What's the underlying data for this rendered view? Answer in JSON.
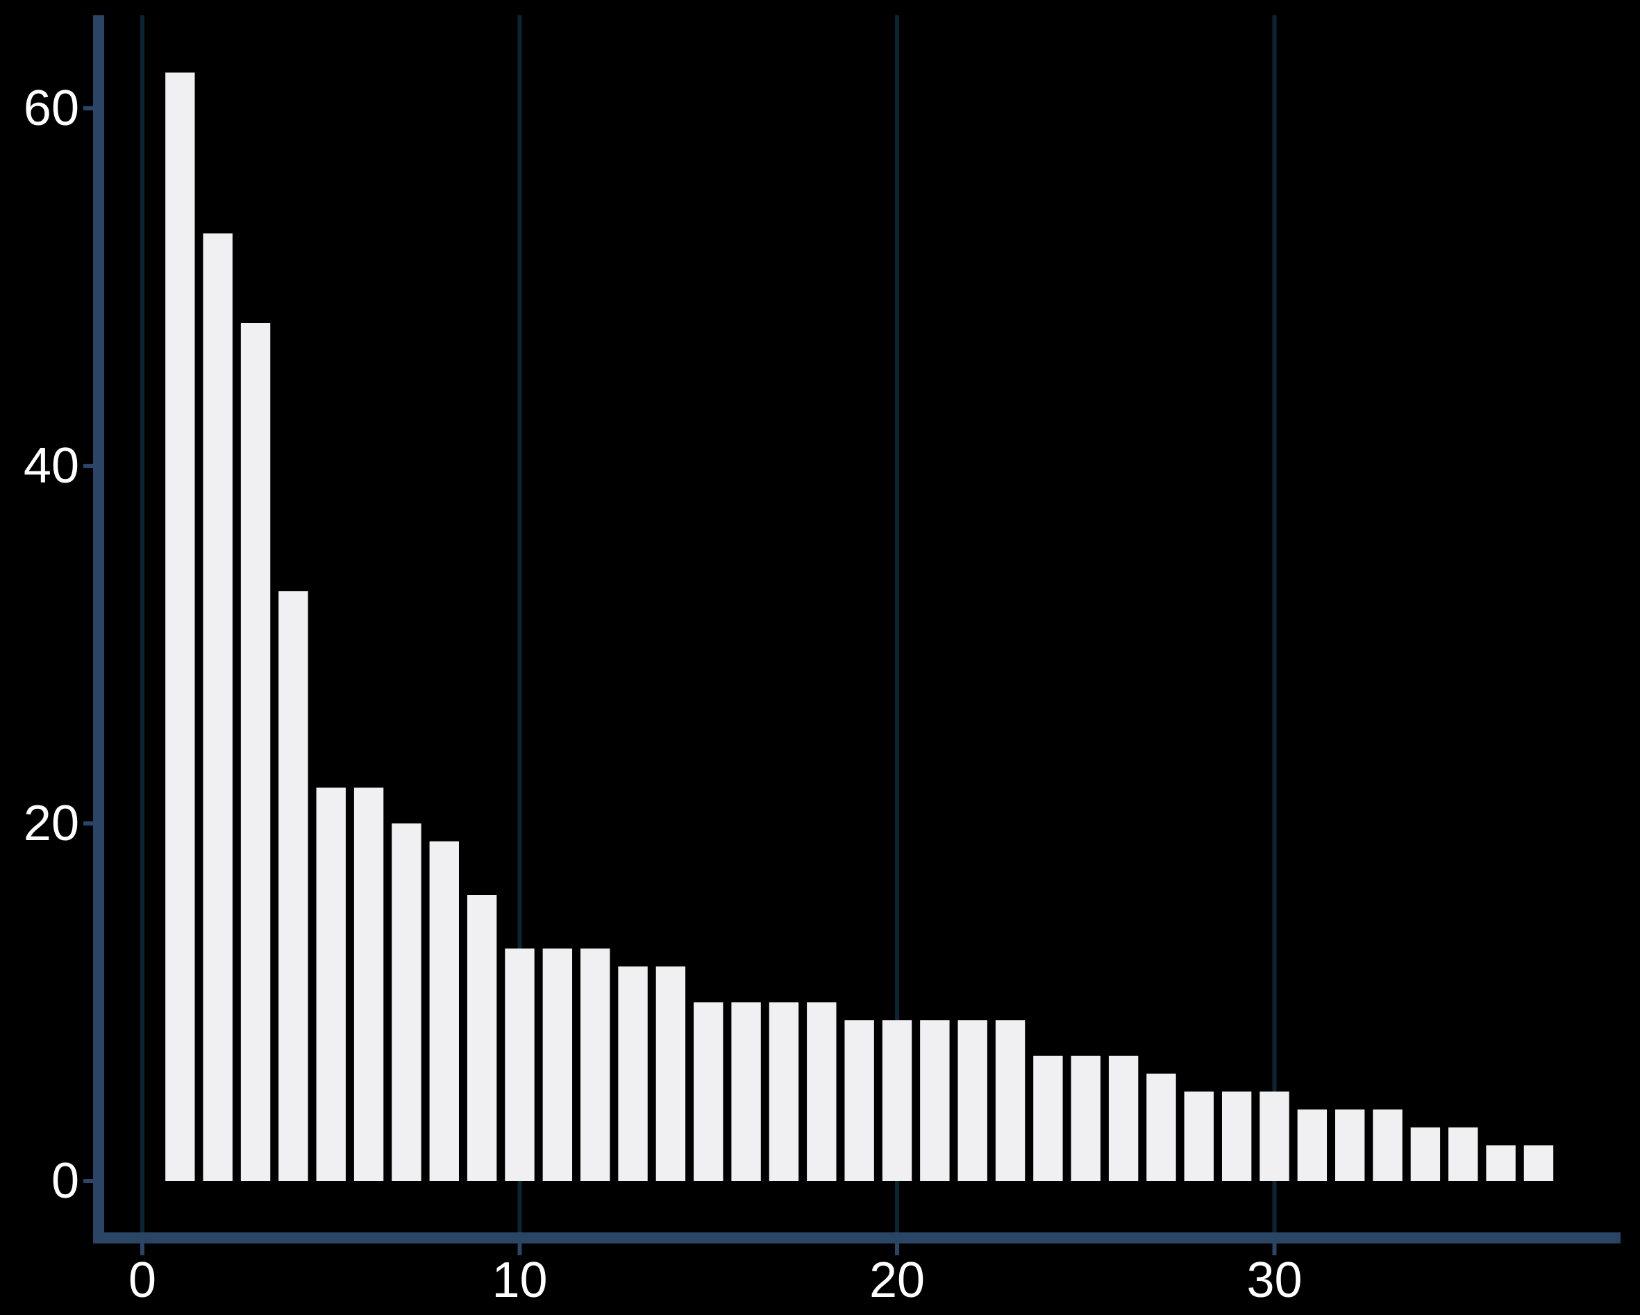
{
  "chart_data": {
    "type": "bar",
    "title": "",
    "xlabel": "",
    "ylabel": "",
    "x": [
      1,
      2,
      3,
      4,
      5,
      6,
      7,
      8,
      9,
      10,
      11,
      12,
      13,
      14,
      15,
      16,
      17,
      18,
      19,
      20,
      21,
      22,
      23,
      24,
      25,
      26,
      27,
      28,
      29,
      30,
      31,
      32,
      33,
      34,
      35,
      36,
      37
    ],
    "values": [
      62,
      53,
      48,
      33,
      22,
      22,
      20,
      19,
      16,
      13,
      13,
      13,
      12,
      12,
      10,
      10,
      10,
      10,
      9,
      9,
      9,
      9,
      9,
      7,
      7,
      7,
      6,
      5,
      5,
      5,
      4,
      4,
      4,
      3,
      3,
      2,
      2
    ],
    "xlim": [
      -1.2,
      39.1
    ],
    "ylim": [
      -3,
      65
    ],
    "xticks": [
      "0",
      "10",
      "20",
      "30"
    ],
    "yticks": [
      "0",
      "20",
      "40",
      "60"
    ],
    "grid": "vertical major lines",
    "legend": "none",
    "colors": {
      "background": "#000000",
      "bar_fill": "#f0f0f2",
      "axis_line": "#2a4565",
      "grid_line": "#0c2535",
      "tick_text": "#ffffff"
    }
  }
}
